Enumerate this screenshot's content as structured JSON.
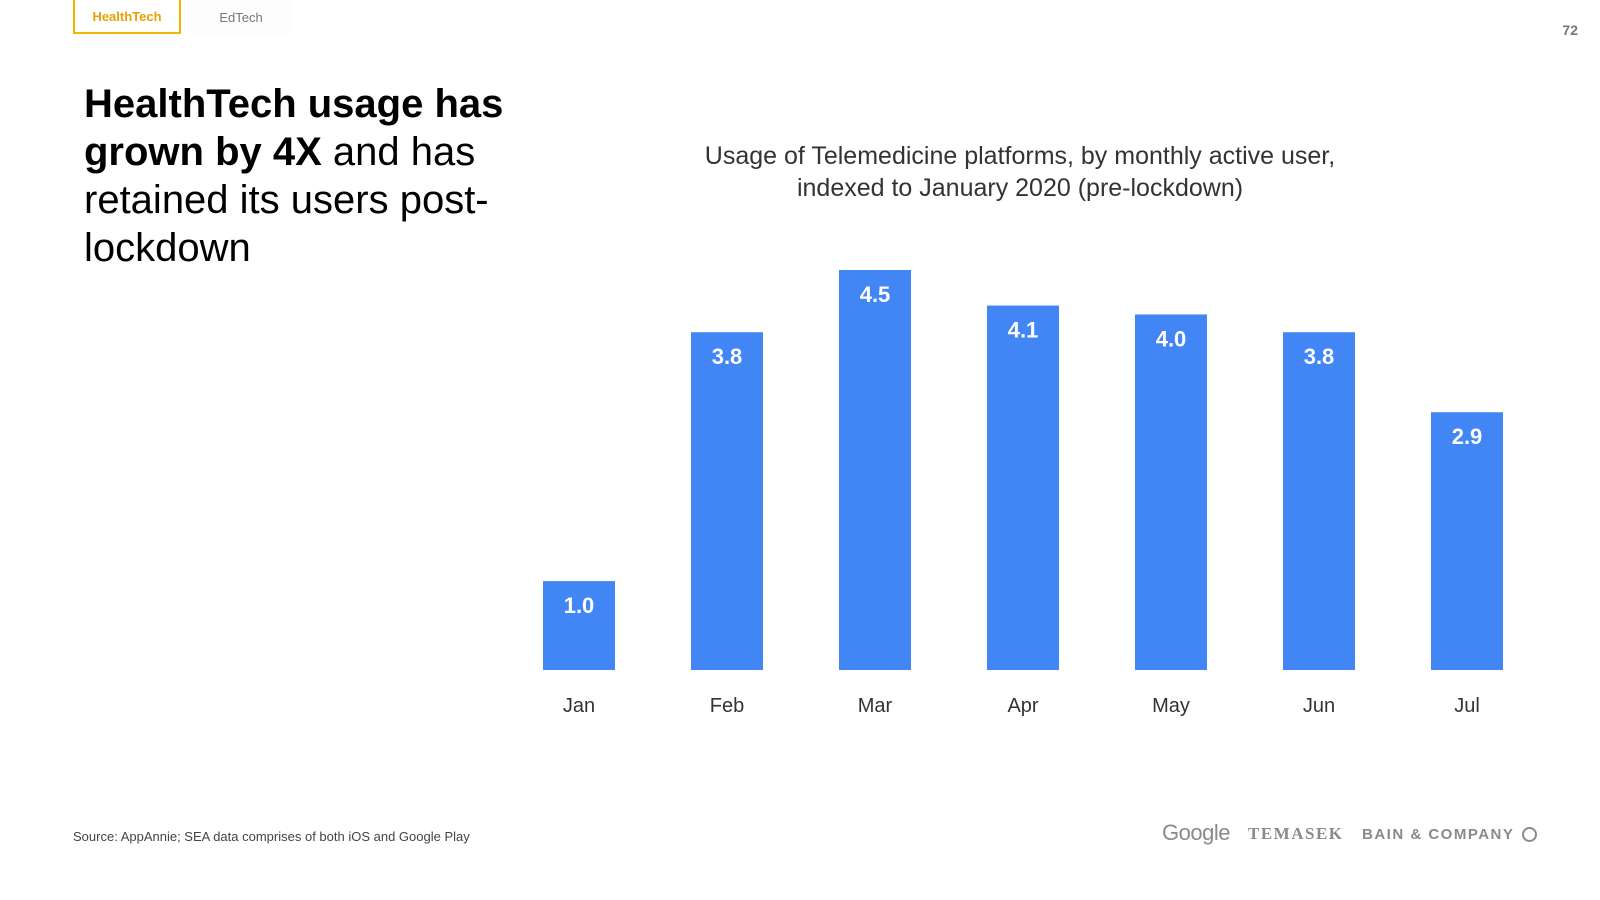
{
  "tabs": [
    {
      "label": "HealthTech",
      "active": true
    },
    {
      "label": "EdTech",
      "active": false
    }
  ],
  "page_number": "72",
  "headline": {
    "bold": "HealthTech usage has grown by 4X",
    "normal": " and has retained its users post-lockdown"
  },
  "source": "Source: AppAnnie; SEA data comprises of both iOS and Google Play",
  "logos": {
    "google": "Google",
    "temasek": "TEMASEK",
    "bain": "BAIN & COMPANY"
  },
  "colors": {
    "bar": "#4285f4",
    "accent": "#f4b400",
    "label_on_bar": "#ffffff",
    "axis_label": "#333333"
  },
  "chart_data": {
    "type": "bar",
    "title": "Usage of Telemedicine platforms, by monthly active user, indexed to January 2020 (pre-lockdown)",
    "title_lines": [
      "Usage of Telemedicine platforms, by monthly active user,",
      "indexed to January 2020 (pre-lockdown)"
    ],
    "categories": [
      "Jan",
      "Feb",
      "Mar",
      "Apr",
      "May",
      "Jun",
      "Jul"
    ],
    "values": [
      1.0,
      3.8,
      4.5,
      4.1,
      4.0,
      3.8,
      2.9
    ],
    "data_labels": [
      "1.0",
      "3.8",
      "4.5",
      "4.1",
      "4.0",
      "3.8",
      "2.9"
    ],
    "xlabel": "",
    "ylabel": "",
    "ylim": [
      0,
      4.5
    ],
    "grid": false,
    "legend": "none"
  }
}
